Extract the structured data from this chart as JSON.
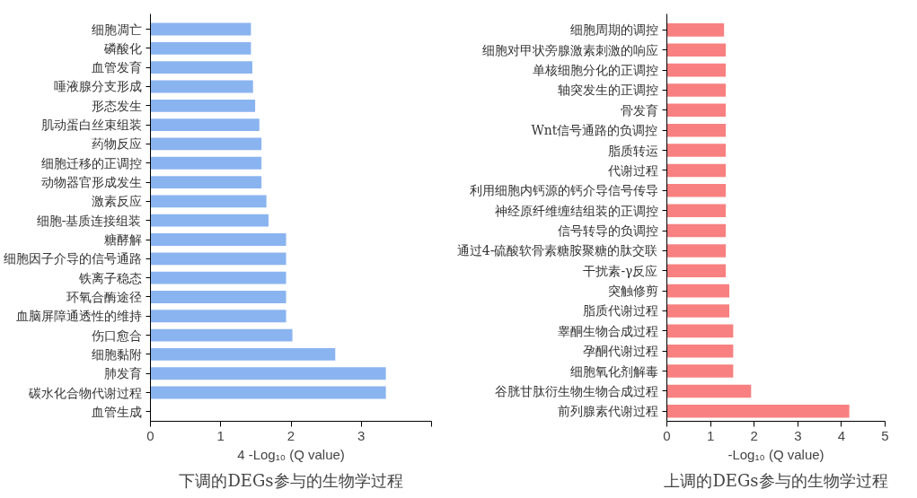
{
  "chart_data": [
    {
      "type": "bar",
      "orientation": "horizontal",
      "title": "下调的DEGs参与的生物学过程",
      "xlabel": "4 -Log₁₀ (Q value)",
      "color": "#8ab4f0",
      "grid": false,
      "categories": [
        "细胞凋亡",
        "磷酸化",
        "血管发育",
        "唾液腺分支形成",
        "形态发生",
        "肌动蛋白丝束组装",
        "药物反应",
        "细胞迁移的正调控",
        "动物器官形成发生",
        "激素反应",
        "细胞-基质连接组装",
        "糖酵解",
        "细胞因子介导的信号通路",
        "铁离子稳态",
        "环氧合酶途径",
        "血脑屏障通透性的维持",
        "伤口愈合",
        "细胞黏附",
        "肺发育",
        "碳水化合物代谢过程",
        "血管生成"
      ],
      "values": [
        1.43,
        1.43,
        1.45,
        1.46,
        1.49,
        1.55,
        1.58,
        1.58,
        1.58,
        1.65,
        1.68,
        1.93,
        1.93,
        1.93,
        1.93,
        1.93,
        2.02,
        2.63,
        3.35,
        3.35,
        null
      ],
      "xlim": [
        0,
        4
      ],
      "xticks": [
        0,
        1,
        2,
        3,
        {
          "value": 4,
          "label": null
        }
      ]
    },
    {
      "type": "bar",
      "orientation": "horizontal",
      "title": "上调的DEGs参与的生物学过程",
      "xlabel": "-Log₁₀ (Q value)",
      "color": "#f88080",
      "grid": false,
      "categories": [
        "细胞周期的调控",
        "细胞对甲状旁腺激素刺激的响应",
        "单核细胞分化的正调控",
        "轴突发生的正调控",
        "骨发育",
        "Wnt信号通路的负调控",
        "脂质转运",
        "代谢过程",
        "利用细胞内钙源的钙介导信号传导",
        "神经原纤维缠结组装的正调控",
        "信号转导的负调控",
        "通过4-硫酸软骨素糖胺聚糖的肽交联",
        "干扰素-γ反应",
        "突触修剪",
        "脂质代谢过程",
        "睾酮生物合成过程",
        "孕酮代谢过程",
        "细胞氧化剂解毒",
        "谷胱甘肽衍生物生物合成过程",
        "前列腺素代谢过程"
      ],
      "values": [
        1.31,
        1.35,
        1.35,
        1.35,
        1.35,
        1.35,
        1.35,
        1.35,
        1.35,
        1.35,
        1.35,
        1.35,
        1.35,
        1.43,
        1.43,
        1.52,
        1.52,
        1.52,
        1.93,
        4.18
      ],
      "xlim": [
        0,
        5
      ],
      "xticks": [
        0,
        1,
        2,
        3,
        4,
        5
      ]
    }
  ]
}
